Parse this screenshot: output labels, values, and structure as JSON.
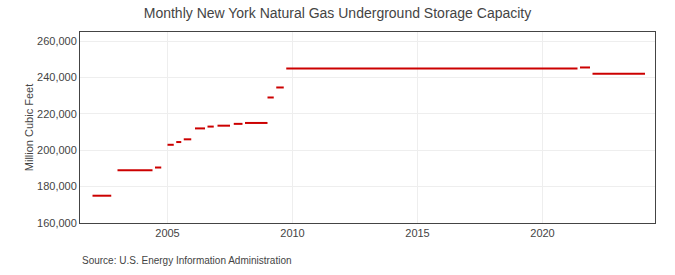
{
  "chart_data": {
    "type": "line",
    "title": "Monthly New York Natural Gas Underground Storage Capacity",
    "ylabel": "Million Cubic Feet",
    "annotations": [
      "Source: U.S. Energy Information Administration"
    ],
    "color": "#cc0000",
    "grid": true,
    "xlim": [
      2001.5,
      2024.5
    ],
    "xticks": [
      2005,
      2010,
      2015,
      2020
    ],
    "ylim": [
      160000,
      265000
    ],
    "yticks": [
      {
        "value": 160000,
        "label": "160,000"
      },
      {
        "value": 180000,
        "label": "180,000"
      },
      {
        "value": 200000,
        "label": "200,000"
      },
      {
        "value": 220000,
        "label": "220,000"
      },
      {
        "value": 240000,
        "label": "240,000"
      },
      {
        "value": 260000,
        "label": "260,000"
      }
    ],
    "segments": [
      {
        "x_start": 2002.0,
        "x_end": 2002.75,
        "y": 175000
      },
      {
        "x_start": 2003.0,
        "x_end": 2004.4,
        "y": 189000
      },
      {
        "x_start": 2004.5,
        "x_end": 2004.75,
        "y": 190500
      },
      {
        "x_start": 2005.0,
        "x_end": 2005.25,
        "y": 203000
      },
      {
        "x_start": 2005.35,
        "x_end": 2005.55,
        "y": 204500
      },
      {
        "x_start": 2005.65,
        "x_end": 2005.95,
        "y": 206000
      },
      {
        "x_start": 2006.1,
        "x_end": 2006.5,
        "y": 212000
      },
      {
        "x_start": 2006.6,
        "x_end": 2006.85,
        "y": 213000
      },
      {
        "x_start": 2007.0,
        "x_end": 2007.5,
        "y": 213500
      },
      {
        "x_start": 2007.65,
        "x_end": 2008.0,
        "y": 214500
      },
      {
        "x_start": 2008.1,
        "x_end": 2009.0,
        "y": 215000
      },
      {
        "x_start": 2009.0,
        "x_end": 2009.25,
        "y": 229000
      },
      {
        "x_start": 2009.35,
        "x_end": 2009.65,
        "y": 234500
      },
      {
        "x_start": 2009.75,
        "x_end": 2021.4,
        "y": 245000
      },
      {
        "x_start": 2021.5,
        "x_end": 2021.9,
        "y": 245500
      },
      {
        "x_start": 2022.0,
        "x_end": 2024.1,
        "y": 242000
      }
    ]
  }
}
